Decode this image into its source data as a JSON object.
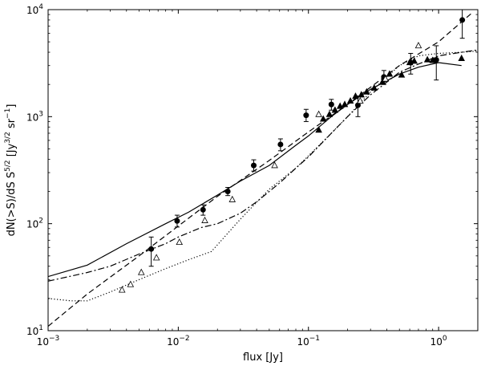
{
  "chart_data": {
    "type": "scatter",
    "x_scale": "log",
    "y_scale": "log",
    "xlim": [
      0.001,
      2.0
    ],
    "ylim": [
      10,
      10000
    ],
    "xlabel": "flux [Jy]",
    "ylabel_parts": [
      "dN(>S)/dS S",
      "5/2",
      " [Jy",
      "3/2",
      " sr",
      "−1",
      "]"
    ],
    "x_ticks": [
      {
        "value": 0.001,
        "base": "10",
        "exp": "−3"
      },
      {
        "value": 0.01,
        "base": "10",
        "exp": "−2"
      },
      {
        "value": 0.1,
        "base": "10",
        "exp": "−1"
      },
      {
        "value": 1,
        "base": "10",
        "exp": "0"
      }
    ],
    "y_ticks": [
      {
        "value": 10,
        "base": "10",
        "exp": "1"
      },
      {
        "value": 100,
        "base": "10",
        "exp": "2"
      },
      {
        "value": 1000,
        "base": "10",
        "exp": "3"
      },
      {
        "value": 10000,
        "base": "10",
        "exp": "4"
      }
    ],
    "series": [
      {
        "style": "solid-line",
        "points": [
          [
            0.001,
            32
          ],
          [
            0.002,
            41
          ],
          [
            0.004,
            65
          ],
          [
            0.008,
            100
          ],
          [
            0.012,
            128
          ],
          [
            0.02,
            185
          ],
          [
            0.03,
            250
          ],
          [
            0.05,
            350
          ],
          [
            0.08,
            540
          ],
          [
            0.1,
            660
          ],
          [
            0.15,
            1000
          ],
          [
            0.2,
            1300
          ],
          [
            0.3,
            1800
          ],
          [
            0.5,
            2500
          ],
          [
            0.7,
            2900
          ],
          [
            1.0,
            3200
          ],
          [
            1.5,
            3000
          ]
        ]
      },
      {
        "style": "dashed-line",
        "points": [
          [
            0.001,
            11
          ],
          [
            0.002,
            22
          ],
          [
            0.005,
            50
          ],
          [
            0.01,
            95
          ],
          [
            0.02,
            180
          ],
          [
            0.05,
            390
          ],
          [
            0.1,
            720
          ],
          [
            0.2,
            1300
          ],
          [
            0.5,
            3000
          ],
          [
            1.0,
            5000
          ],
          [
            1.8,
            9300
          ]
        ]
      },
      {
        "style": "dash-dot-line",
        "points": [
          [
            0.001,
            29
          ],
          [
            0.002,
            35
          ],
          [
            0.003,
            40
          ],
          [
            0.005,
            52
          ],
          [
            0.008,
            65
          ],
          [
            0.01,
            75
          ],
          [
            0.015,
            92
          ],
          [
            0.02,
            100
          ],
          [
            0.03,
            125
          ],
          [
            0.04,
            160
          ],
          [
            0.06,
            240
          ],
          [
            0.08,
            330
          ],
          [
            0.1,
            420
          ],
          [
            0.15,
            700
          ],
          [
            0.2,
            1000
          ],
          [
            0.3,
            1600
          ],
          [
            0.5,
            2600
          ],
          [
            0.7,
            3100
          ],
          [
            1.0,
            3700
          ],
          [
            1.5,
            4000
          ],
          [
            2.0,
            4200
          ]
        ]
      },
      {
        "style": "dotted-line",
        "points": [
          [
            0.001,
            20
          ],
          [
            0.0015,
            19
          ],
          [
            0.002,
            19
          ],
          [
            0.003,
            23
          ],
          [
            0.005,
            30
          ],
          [
            0.008,
            38
          ],
          [
            0.012,
            46
          ],
          [
            0.018,
            55
          ],
          [
            0.03,
            110
          ],
          [
            0.05,
            210
          ],
          [
            0.08,
            330
          ],
          [
            0.1,
            430
          ],
          [
            0.15,
            700
          ],
          [
            0.2,
            1000
          ],
          [
            0.3,
            1700
          ],
          [
            0.5,
            3000
          ],
          [
            0.7,
            3700
          ],
          [
            1.0,
            3900
          ],
          [
            1.5,
            4000
          ],
          [
            2.0,
            4100
          ]
        ]
      },
      {
        "style": "filled-circle",
        "points": [
          {
            "x": 0.0062,
            "y": 58,
            "ylo": 40,
            "yhi": 75
          },
          {
            "x": 0.0098,
            "y": 106,
            "ylo": 93,
            "yhi": 120
          },
          {
            "x": 0.0155,
            "y": 135,
            "ylo": 120,
            "yhi": 150
          },
          {
            "x": 0.024,
            "y": 200,
            "ylo": 183,
            "yhi": 218
          },
          {
            "x": 0.038,
            "y": 350,
            "ylo": 310,
            "yhi": 395
          },
          {
            "x": 0.061,
            "y": 550,
            "ylo": 480,
            "yhi": 620
          },
          {
            "x": 0.096,
            "y": 1030,
            "ylo": 900,
            "yhi": 1170
          },
          {
            "x": 0.15,
            "y": 1300,
            "ylo": 1150,
            "yhi": 1450
          },
          {
            "x": 0.24,
            "y": 1280,
            "ylo": 1000,
            "yhi": 1560
          },
          {
            "x": 0.38,
            "y": 2350,
            "ylo": 2000,
            "yhi": 2700
          },
          {
            "x": 0.61,
            "y": 3200,
            "ylo": 2500,
            "yhi": 3900
          },
          {
            "x": 0.96,
            "y": 3400,
            "ylo": 2200,
            "yhi": 4600
          },
          {
            "x": 1.52,
            "y": 8000,
            "ylo": 5400,
            "yhi": 10000
          }
        ]
      },
      {
        "style": "filled-triangle",
        "points": [
          [
            0.12,
            750
          ],
          [
            0.13,
            950
          ],
          [
            0.145,
            1050
          ],
          [
            0.16,
            1150
          ],
          [
            0.175,
            1250
          ],
          [
            0.19,
            1300
          ],
          [
            0.21,
            1400
          ],
          [
            0.23,
            1550
          ],
          [
            0.255,
            1600
          ],
          [
            0.28,
            1700
          ],
          [
            0.32,
            1850
          ],
          [
            0.37,
            2100
          ],
          [
            0.42,
            2500
          ],
          [
            0.52,
            2450
          ],
          [
            0.6,
            3200
          ],
          [
            0.65,
            3300
          ],
          [
            0.82,
            3400
          ],
          [
            0.9,
            3350
          ],
          [
            1.5,
            3500
          ]
        ]
      },
      {
        "style": "open-triangle",
        "points": [
          [
            0.0037,
            24
          ],
          [
            0.0043,
            27
          ],
          [
            0.0052,
            35
          ],
          [
            0.0068,
            48
          ],
          [
            0.0102,
            67
          ],
          [
            0.016,
            107
          ],
          [
            0.026,
            168
          ],
          [
            0.055,
            350
          ],
          [
            0.12,
            1050
          ],
          [
            0.25,
            1400
          ],
          [
            0.39,
            2250
          ],
          [
            0.7,
            4600
          ]
        ]
      }
    ]
  }
}
